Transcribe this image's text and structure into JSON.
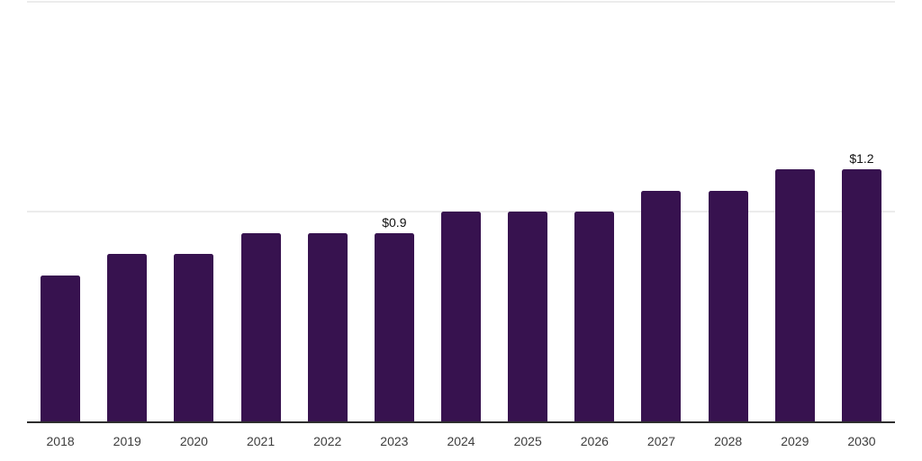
{
  "chart_data": {
    "type": "bar",
    "title": "",
    "xlabel": "",
    "ylabel": "",
    "categories": [
      "2018",
      "2019",
      "2020",
      "2021",
      "2022",
      "2023",
      "2024",
      "2025",
      "2026",
      "2027",
      "2028",
      "2029",
      "2030"
    ],
    "values": [
      0.7,
      0.8,
      0.8,
      0.9,
      0.9,
      0.9,
      1.0,
      1.0,
      1.0,
      1.1,
      1.1,
      1.2,
      1.2
    ],
    "data_labels": [
      "",
      "",
      "",
      "",
      "",
      "$0.9",
      "",
      "",
      "",
      "",
      "",
      "",
      "$1.2"
    ],
    "ylim": [
      0,
      2.0
    ],
    "gridline_values": [
      1.0,
      2.0
    ],
    "grid": "horizontal-light",
    "legend": "none",
    "colors": {
      "bar": "#37124f",
      "gridline": "#ececec",
      "axis_line": "#2e2e2e",
      "data_label_text": "#111111",
      "tick_label_text": "#3d3d3d",
      "background": "#ffffff"
    }
  }
}
